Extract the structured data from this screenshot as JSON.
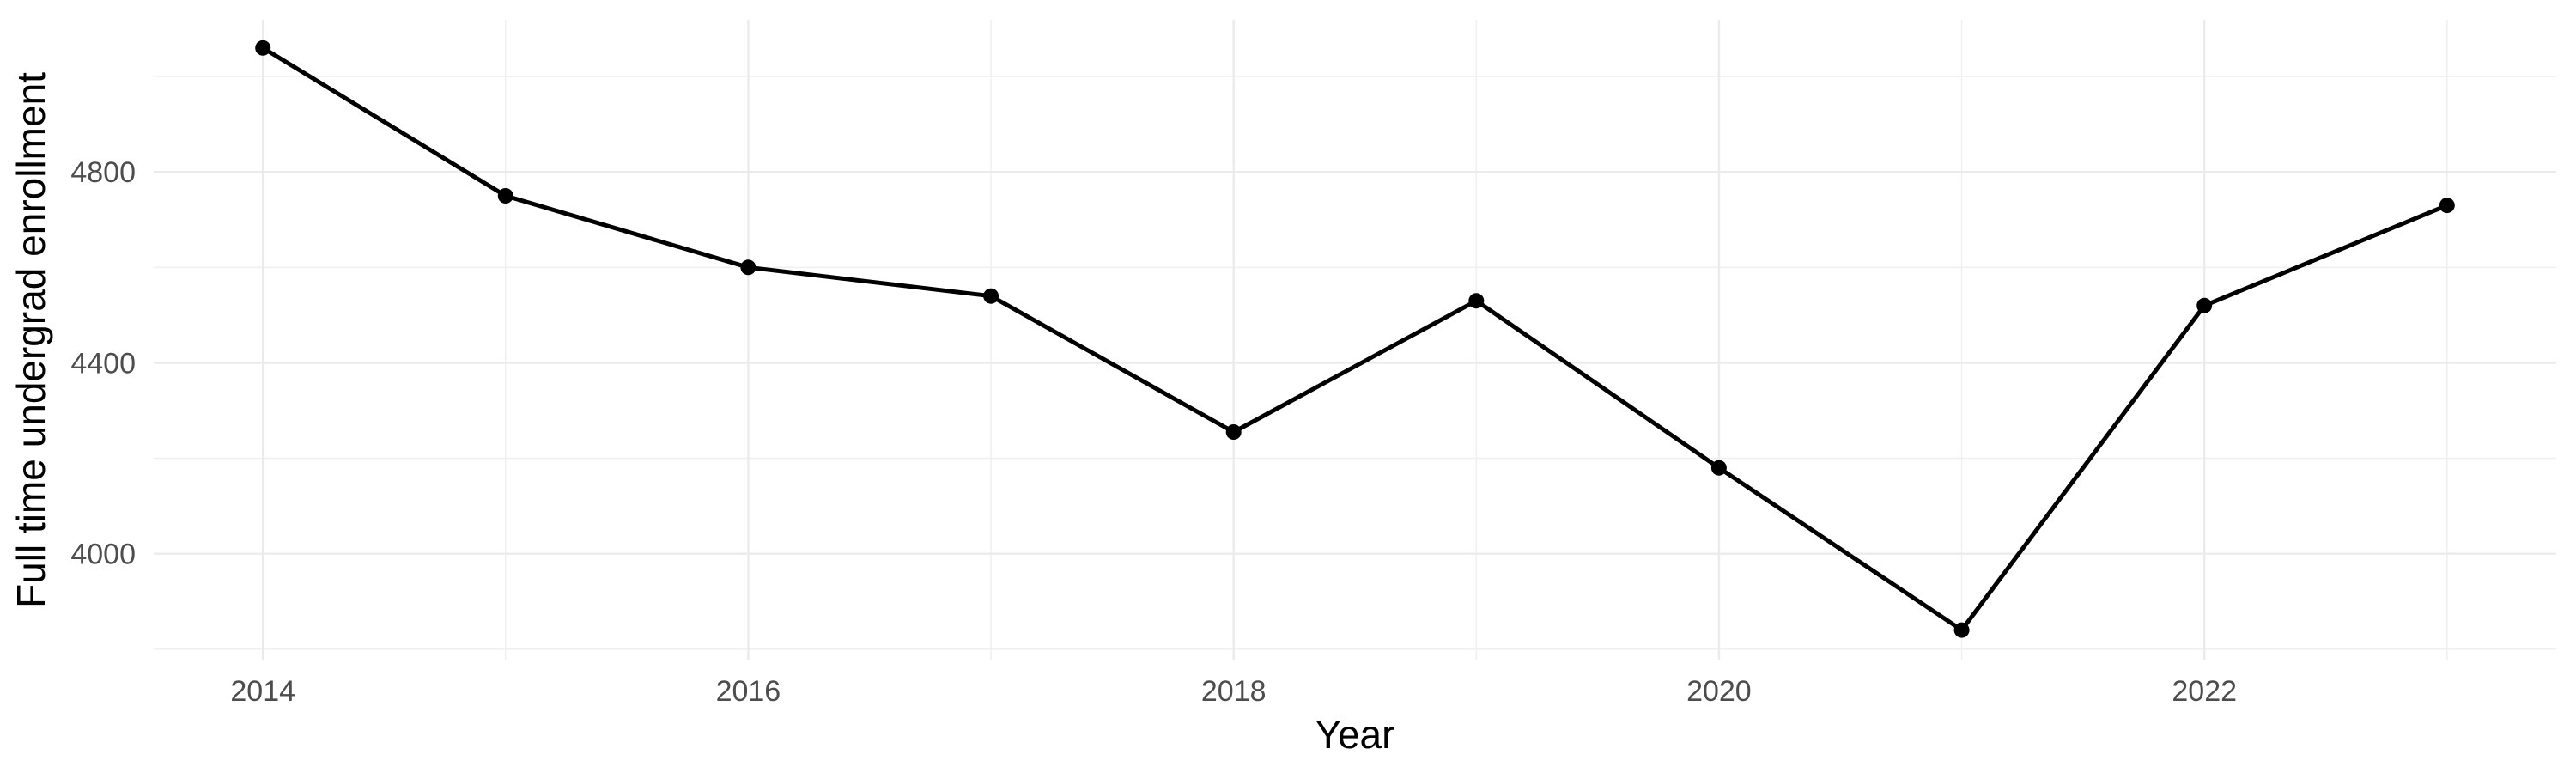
{
  "chart_data": {
    "type": "line",
    "title": "",
    "xlabel": "Year",
    "ylabel": "Full time undergrad enrollment",
    "x": [
      2014,
      2015,
      2016,
      2017,
      2018,
      2019,
      2020,
      2021,
      2022,
      2023
    ],
    "series": [
      {
        "name": "Full time undergrad enrollment",
        "values": [
          5060,
          4750,
          4600,
          4540,
          4255,
          4530,
          4180,
          3840,
          4520,
          4730
        ]
      }
    ],
    "xlim": [
      2013.55,
      2023.45
    ],
    "ylim": [
      3778,
      5119
    ],
    "xticks": {
      "major": [
        2014,
        2016,
        2018,
        2020,
        2022
      ],
      "minor": [
        2015,
        2017,
        2019,
        2021,
        2023
      ]
    },
    "yticks": {
      "major": [
        4800,
        4400,
        4000
      ],
      "minor": [
        5000,
        4600,
        4200,
        3800
      ]
    },
    "grid": true,
    "legend": "none",
    "marker": "point",
    "colors": {
      "line": "#000000",
      "point": "#000000",
      "grid_major": "#EBEBEB",
      "grid_minor": "#F0F0F0",
      "tick_label": "#4D4D4D",
      "axis_title": "#000000",
      "background": "#FFFFFF"
    }
  }
}
